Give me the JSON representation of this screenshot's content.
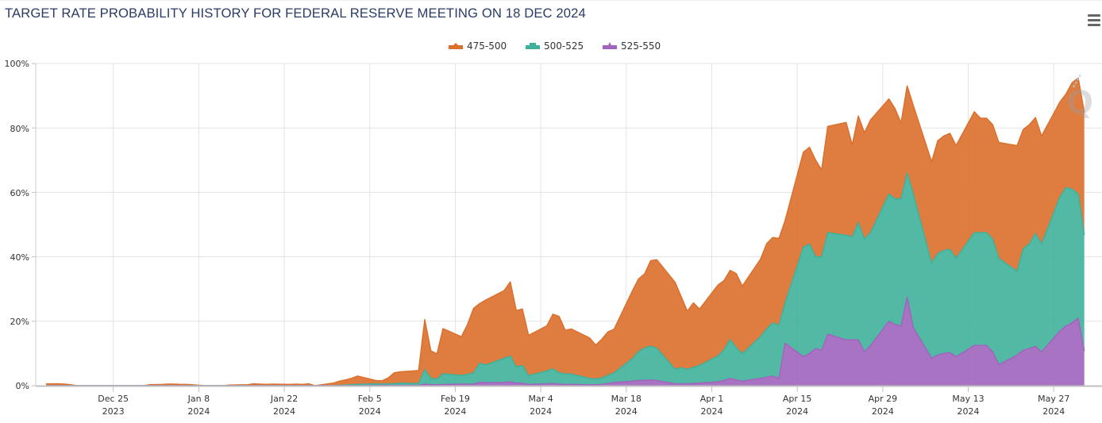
{
  "header": {
    "title": "TARGET RATE PROBABILITY HISTORY FOR FEDERAL RESERVE MEETING ON 18 DEC 2024",
    "menu_icon": "hamburger-menu-icon"
  },
  "chart_data": {
    "type": "area",
    "stacked": true,
    "title": "TARGET RATE PROBABILITY HISTORY FOR FEDERAL RESERVE MEETING ON 18 DEC 2024",
    "xlabel": "",
    "ylabel": "",
    "x_unit": "days since Dec 25 2023",
    "xlim": [
      -12.7,
      161.9
    ],
    "ylim": [
      0,
      100
    ],
    "grid": true,
    "legend_position": "top-center",
    "yticks": [
      "0%",
      "20%",
      "40%",
      "60%",
      "80%",
      "100%"
    ],
    "ytick_values": [
      0,
      20,
      40,
      60,
      80,
      100
    ],
    "xticks": [
      {
        "day": 0,
        "line1": "Dec 25",
        "line2": "2023"
      },
      {
        "day": 14,
        "line1": "Jan 8",
        "line2": "2024"
      },
      {
        "day": 28,
        "line1": "Jan 22",
        "line2": "2024"
      },
      {
        "day": 42,
        "line1": "Feb 5",
        "line2": "2024"
      },
      {
        "day": 56,
        "line1": "Feb 19",
        "line2": "2024"
      },
      {
        "day": 70,
        "line1": "Mar 4",
        "line2": "2024"
      },
      {
        "day": 84,
        "line1": "Mar 18",
        "line2": "2024"
      },
      {
        "day": 98,
        "line1": "Apr 1",
        "line2": "2024"
      },
      {
        "day": 112,
        "line1": "Apr 15",
        "line2": "2024"
      },
      {
        "day": 126,
        "line1": "Apr 29",
        "line2": "2024"
      },
      {
        "day": 140,
        "line1": "May 13",
        "line2": "2024"
      },
      {
        "day": 154,
        "line1": "May 27",
        "line2": "2024"
      }
    ],
    "series": [
      {
        "name": "475-500",
        "color": "#dc6f2c",
        "marker": "diamond"
      },
      {
        "name": "500-525",
        "color": "#3fb19a",
        "marker": "square"
      },
      {
        "name": "525-550",
        "color": "#a064bc",
        "marker": "triangle"
      }
    ],
    "x": [
      -11,
      -10,
      -9,
      -8,
      -7,
      -6,
      -3,
      -2,
      -1,
      1,
      2,
      3,
      4,
      5,
      6,
      8,
      9,
      10,
      11,
      12,
      15,
      16,
      17,
      18,
      19,
      22,
      23,
      24,
      25,
      26,
      29,
      30,
      31,
      32,
      33,
      36,
      37,
      38,
      39,
      40,
      43,
      44,
      45,
      46,
      47,
      50,
      51,
      52,
      53,
      54,
      57,
      58,
      59,
      60,
      61,
      64,
      65,
      66,
      67,
      68,
      71,
      72,
      73,
      74,
      75,
      78,
      79,
      80,
      81,
      82,
      85,
      86,
      87,
      88,
      89,
      92,
      93,
      94,
      95,
      96,
      99,
      100,
      101,
      102,
      103,
      106,
      107,
      108,
      109,
      110,
      113,
      114,
      115,
      116,
      117,
      120,
      121,
      122,
      123,
      124,
      127,
      128,
      129,
      130,
      131,
      134,
      135,
      136,
      137,
      138,
      141,
      142,
      143,
      144,
      145,
      148,
      149,
      150,
      151,
      152,
      155,
      156,
      157,
      158,
      159
    ],
    "series_values": {
      "475-500": [
        0.6,
        0.6,
        0.6,
        0.5,
        0.3,
        0.0,
        0.0,
        0.0,
        0.0,
        0.0,
        0.0,
        0.0,
        0.0,
        0.0,
        0.3,
        0.4,
        0.5,
        0.5,
        0.4,
        0.4,
        0.0,
        0.0,
        0.0,
        0.0,
        0.2,
        0.3,
        0.6,
        0.5,
        0.4,
        0.5,
        0.4,
        0.5,
        0.4,
        0.6,
        0.0,
        0.8,
        1.3,
        1.6,
        2.0,
        2.6,
        1.0,
        1.0,
        1.8,
        3.4,
        3.5,
        4.0,
        15.5,
        8.5,
        7.8,
        14.0,
        12.0,
        15.5,
        20.0,
        18.5,
        20.2,
        21.0,
        23.0,
        17.5,
        17.5,
        12.5,
        14.0,
        17.0,
        17.5,
        13.5,
        14.0,
        12.5,
        10.5,
        12.0,
        13.5,
        13.5,
        21.0,
        22.5,
        23.0,
        26.5,
        27.5,
        27.0,
        22.0,
        18.0,
        20.0,
        17.5,
        22.0,
        21.5,
        21.5,
        23.0,
        21.0,
        24.0,
        26.5,
        26.5,
        27.0,
        25.5,
        29.5,
        30.0,
        30.0,
        27.0,
        33.0,
        35.0,
        28.5,
        33.0,
        33.0,
        35.0,
        29.5,
        28.0,
        23.5,
        27.0,
        27.5,
        31.5,
        35.0,
        35.5,
        36.0,
        35.0,
        37.5,
        35.5,
        35.5,
        35.5,
        36.0,
        39.0,
        37.0,
        37.0,
        36.0,
        33.5,
        29.5,
        29.0,
        33.0,
        36.0,
        38.0
      ],
      "500-525": [
        0.0,
        0.0,
        0.0,
        0.0,
        0.0,
        0.0,
        0.0,
        0.0,
        0.0,
        0.0,
        0.0,
        0.0,
        0.0,
        0.0,
        0.0,
        0.0,
        0.0,
        0.0,
        0.0,
        0.0,
        0.0,
        0.0,
        0.0,
        0.0,
        0.0,
        0.0,
        0.0,
        0.0,
        0.0,
        0.0,
        0.0,
        0.0,
        0.0,
        0.0,
        0.0,
        0.0,
        0.1,
        0.2,
        0.3,
        0.4,
        0.5,
        0.4,
        0.5,
        0.5,
        0.7,
        0.6,
        4.5,
        2.0,
        1.8,
        3.3,
        2.7,
        3.0,
        3.5,
        6.0,
        5.5,
        7.5,
        8.0,
        5.0,
        5.5,
        2.7,
        4.0,
        4.5,
        3.5,
        3.3,
        3.2,
        2.0,
        1.8,
        2.0,
        2.5,
        3.0,
        7.0,
        9.0,
        10.0,
        10.5,
        10.0,
        4.5,
        5.0,
        4.5,
        5.0,
        5.5,
        8.0,
        9.5,
        12.0,
        10.0,
        8.5,
        13.0,
        15.0,
        16.5,
        16.5,
        12.5,
        34.0,
        34.0,
        28.5,
        29.0,
        31.5,
        32.5,
        32.0,
        36.5,
        35.0,
        35.0,
        39.5,
        39.0,
        39.5,
        38.5,
        41.5,
        29.5,
        31.5,
        32.0,
        32.0,
        30.5,
        35.0,
        35.0,
        35.0,
        35.0,
        33.0,
        26.0,
        31.5,
        32.5,
        35.0,
        33.5,
        41.5,
        43.0,
        41.5,
        38.5,
        36.0
      ],
      "525-550": [
        0.0,
        0.0,
        0.0,
        0.0,
        0.0,
        0.0,
        0.0,
        0.0,
        0.0,
        0.0,
        0.0,
        0.0,
        0.0,
        0.0,
        0.0,
        0.0,
        0.0,
        0.0,
        0.0,
        0.0,
        0.0,
        0.0,
        0.0,
        0.0,
        0.0,
        0.0,
        0.0,
        0.0,
        0.0,
        0.0,
        0.0,
        0.0,
        0.0,
        0.0,
        0.0,
        0.0,
        0.0,
        0.0,
        0.0,
        0.0,
        0.1,
        0.1,
        0.1,
        0.1,
        0.1,
        0.1,
        0.5,
        0.3,
        0.3,
        0.4,
        0.5,
        0.5,
        0.5,
        1.0,
        0.9,
        1.0,
        1.2,
        0.8,
        0.8,
        0.4,
        0.6,
        0.7,
        0.5,
        0.4,
        0.4,
        0.3,
        0.3,
        0.4,
        0.7,
        1.0,
        1.4,
        1.6,
        1.7,
        1.8,
        1.6,
        0.6,
        0.6,
        0.6,
        0.7,
        0.8,
        1.2,
        1.6,
        2.3,
        1.8,
        1.4,
        2.3,
        2.6,
        3.0,
        2.2,
        13.2,
        9.0,
        10.0,
        11.5,
        11.0,
        16.0,
        14.2,
        14.2,
        14.2,
        10.5,
        12.5,
        20.0,
        19.0,
        18.5,
        27.5,
        18.0,
        8.5,
        9.5,
        10.0,
        10.3,
        9.0,
        12.5,
        12.5,
        12.5,
        10.5,
        6.5,
        9.5,
        11.0,
        11.5,
        12.2,
        10.5,
        17.0,
        18.5,
        19.5,
        21.0,
        10.8
      ]
    }
  }
}
